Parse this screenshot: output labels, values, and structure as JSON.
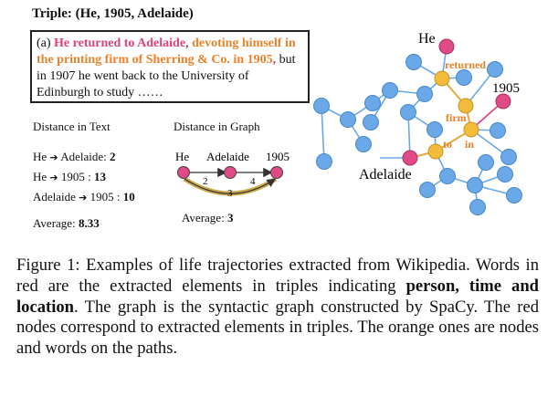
{
  "triple_title": "Triple: (He, 1905, Adelaide)",
  "example": {
    "prefix": "(a) ",
    "part1": "He returned to Adelaide",
    "part2": ", ",
    "part3": "devoting himself in the printing firm of Sherring & Co. in 1905",
    "part4": ",",
    "part5": " but in 1907 he went back to the University of Edinburgh to study ……"
  },
  "distance_text": {
    "heading": "Distance in Text",
    "rows": [
      {
        "from": "He",
        "to": "Adelaide",
        "sep": ": ",
        "value": "2"
      },
      {
        "from": "He",
        "to": "1905",
        "sep": " : ",
        "value": "13"
      },
      {
        "from": "Adelaide",
        "to": "1905",
        "sep": " : ",
        "value": "10"
      }
    ],
    "avg_label": "Average: ",
    "avg_value": "8.33"
  },
  "distance_graph": {
    "heading": "Distance in Graph",
    "node_labels": [
      "He",
      "Adelaide",
      "1905"
    ],
    "edge_labels": [
      "2",
      "4",
      "3"
    ],
    "avg_label": "Average: ",
    "avg_value": "3"
  },
  "graph": {
    "node_labels": {
      "he": "He",
      "year": "1905",
      "adelaide": "Adelaide"
    },
    "path_words": [
      "returned",
      "firm",
      "to",
      "in"
    ]
  },
  "colors": {
    "red": "#e0407a",
    "orange": "#e8822a",
    "blue": "#6aa8e8",
    "yellow": "#f2bc3a",
    "pink": "#e04a86"
  },
  "caption": {
    "p1": "Figure 1: Examples of life trajectories extracted from Wikipedia. Words in red are the extracted elements in triples indicating ",
    "bold": "person, time and location",
    "p2": ". The graph is the syntactic graph constructed by SpaCy. The red nodes correspond to extracted elements in triples. The orange ones are nodes and words on the paths."
  }
}
